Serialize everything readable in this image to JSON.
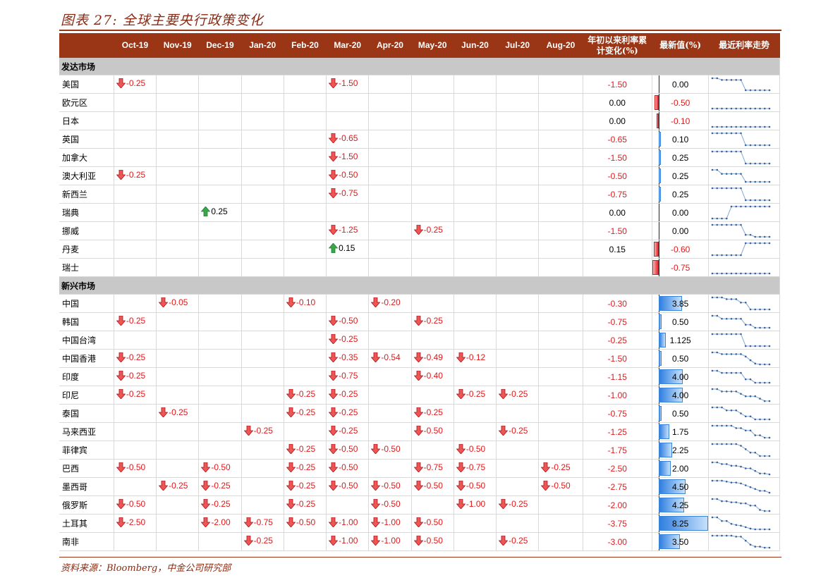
{
  "title": "图表 27: 全球主要央行政策变化",
  "source": "资料来源：Bloomberg，中金公司研究部",
  "headers": {
    "months": [
      "Oct-19",
      "Nov-19",
      "Dec-19",
      "Jan-20",
      "Feb-20",
      "Mar-20",
      "Apr-20",
      "May-20",
      "Jun-20",
      "Jul-20",
      "Aug-20"
    ],
    "ytd": "年初以来利率累计变化(%)",
    "latest": "最新值(%)",
    "trend": "最近利率走势"
  },
  "colors": {
    "header_bg": "#9a3516",
    "cut": "#e0191b",
    "hike_arrow": "#3aa64a",
    "section_bg": "#c8c8c8"
  },
  "sections": [
    {
      "label": "发达市场",
      "rows": [
        {
          "name": "美国",
          "changes": {
            "Oct-19": "-0.25",
            "Mar-20": "-1.50"
          },
          "ytd": "-1.50",
          "latest": "0.00"
        },
        {
          "name": "欧元区",
          "changes": {},
          "ytd": "0.00",
          "latest": "-0.50"
        },
        {
          "name": "日本",
          "changes": {},
          "ytd": "0.00",
          "latest": "-0.10"
        },
        {
          "name": "英国",
          "changes": {
            "Mar-20": "-0.65"
          },
          "ytd": "-0.65",
          "latest": "0.10"
        },
        {
          "name": "加拿大",
          "changes": {
            "Mar-20": "-1.50"
          },
          "ytd": "-1.50",
          "latest": "0.25"
        },
        {
          "name": "澳大利亚",
          "changes": {
            "Oct-19": "-0.25",
            "Mar-20": "-0.50"
          },
          "ytd": "-0.50",
          "latest": "0.25"
        },
        {
          "name": "新西兰",
          "changes": {
            "Mar-20": "-0.75"
          },
          "ytd": "-0.75",
          "latest": "0.25"
        },
        {
          "name": "瑞典",
          "changes": {
            "Dec-19": "0.25"
          },
          "ytd": "0.00",
          "latest": "0.00"
        },
        {
          "name": "挪威",
          "changes": {
            "Mar-20": "-1.25",
            "May-20": "-0.25"
          },
          "ytd": "-1.50",
          "latest": "0.00"
        },
        {
          "name": "丹麦",
          "changes": {
            "Mar-20": "0.15"
          },
          "ytd": "0.15",
          "latest": "-0.60"
        },
        {
          "name": "瑞士",
          "changes": {},
          "ytd": "",
          "latest": "-0.75"
        }
      ]
    },
    {
      "label": "新兴市场",
      "rows": [
        {
          "name": "中国",
          "changes": {
            "Nov-19": "-0.05",
            "Feb-20": "-0.10",
            "Apr-20": "-0.20"
          },
          "ytd": "-0.30",
          "latest": "3.85"
        },
        {
          "name": "韩国",
          "changes": {
            "Oct-19": "-0.25",
            "Mar-20": "-0.50",
            "May-20": "-0.25"
          },
          "ytd": "-0.75",
          "latest": "0.50"
        },
        {
          "name": "中国台湾",
          "changes": {
            "Mar-20": "-0.25"
          },
          "ytd": "-0.25",
          "latest": "1.125"
        },
        {
          "name": "中国香港",
          "changes": {
            "Oct-19": "-0.25",
            "Mar-20": "-0.35",
            "Apr-20": "-0.54",
            "May-20": "-0.49",
            "Jun-20": "-0.12"
          },
          "ytd": "-1.50",
          "latest": "0.50"
        },
        {
          "name": "印度",
          "changes": {
            "Oct-19": "-0.25",
            "Mar-20": "-0.75",
            "May-20": "-0.40"
          },
          "ytd": "-1.15",
          "latest": "4.00"
        },
        {
          "name": "印尼",
          "changes": {
            "Oct-19": "-0.25",
            "Feb-20": "-0.25",
            "Mar-20": "-0.25",
            "Jun-20": "-0.25",
            "Jul-20": "-0.25"
          },
          "ytd": "-1.00",
          "latest": "4.00"
        },
        {
          "name": "泰国",
          "changes": {
            "Nov-19": "-0.25",
            "Feb-20": "-0.25",
            "Mar-20": "-0.25",
            "May-20": "-0.25"
          },
          "ytd": "-0.75",
          "latest": "0.50"
        },
        {
          "name": "马来西亚",
          "changes": {
            "Jan-20": "-0.25",
            "Mar-20": "-0.25",
            "May-20": "-0.50",
            "Jul-20": "-0.25"
          },
          "ytd": "-1.25",
          "latest": "1.75"
        },
        {
          "name": "菲律宾",
          "changes": {
            "Feb-20": "-0.25",
            "Mar-20": "-0.50",
            "Apr-20": "-0.50",
            "Jun-20": "-0.50"
          },
          "ytd": "-1.75",
          "latest": "2.25"
        },
        {
          "name": "巴西",
          "changes": {
            "Oct-19": "-0.50",
            "Dec-19": "-0.50",
            "Feb-20": "-0.25",
            "Mar-20": "-0.50",
            "May-20": "-0.75",
            "Jun-20": "-0.75",
            "Aug-20": "-0.25"
          },
          "ytd": "-2.50",
          "latest": "2.00"
        },
        {
          "name": "墨西哥",
          "changes": {
            "Nov-19": "-0.25",
            "Dec-19": "-0.25",
            "Feb-20": "-0.25",
            "Mar-20": "-0.50",
            "Apr-20": "-0.50",
            "May-20": "-0.50",
            "Jun-20": "-0.50",
            "Aug-20": "-0.50"
          },
          "ytd": "-2.75",
          "latest": "4.50"
        },
        {
          "name": "俄罗斯",
          "changes": {
            "Oct-19": "-0.50",
            "Dec-19": "-0.25",
            "Feb-20": "-0.25",
            "Apr-20": "-0.50",
            "Jun-20": "-1.00",
            "Jul-20": "-0.25"
          },
          "ytd": "-2.00",
          "latest": "4.25"
        },
        {
          "name": "土耳其",
          "changes": {
            "Oct-19": "-2.50",
            "Dec-19": "-2.00",
            "Jan-20": "-0.75",
            "Feb-20": "-0.50",
            "Mar-20": "-1.00",
            "Apr-20": "-1.00",
            "May-20": "-0.50"
          },
          "ytd": "-3.75",
          "latest": "8.25"
        },
        {
          "name": "南非",
          "changes": {
            "Jan-20": "-0.25",
            "Mar-20": "-1.00",
            "Apr-20": "-1.00",
            "May-20": "-0.50",
            "Jul-20": "-0.25"
          },
          "ytd": "-3.00",
          "latest": "3.50"
        }
      ]
    }
  ]
}
